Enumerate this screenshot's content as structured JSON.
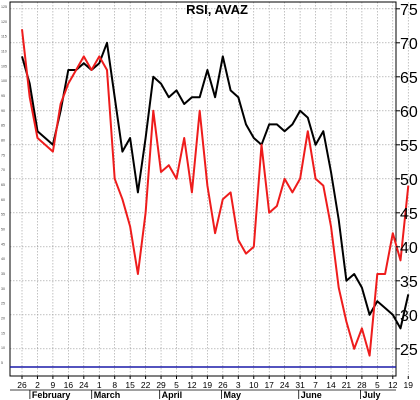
{
  "chart_data": {
    "type": "line",
    "title": "RSI, AVAZ",
    "xlabel": "",
    "ylabel": "",
    "ylim": [
      21,
      76
    ],
    "y_ticks": [
      25,
      30,
      35,
      40,
      45,
      50,
      55,
      60,
      65,
      70,
      75
    ],
    "grid": true,
    "legend": "none",
    "x_ticks": [
      "26",
      "2",
      "9",
      "16",
      "24",
      "1",
      "8",
      "15",
      "22",
      "29",
      "5",
      "12",
      "19",
      "26",
      "3",
      "10",
      "17",
      "24",
      "31",
      "7",
      "14",
      "21",
      "28",
      "5",
      "12",
      "19"
    ],
    "months": [
      "February",
      "March",
      "April",
      "May",
      "June",
      "July"
    ],
    "left_scale_labels": [
      "125",
      "120",
      "115",
      "110",
      "105",
      "100",
      "95",
      "90",
      "85",
      "80",
      "75",
      "70",
      "65",
      "60",
      "55",
      "50",
      "45",
      "40",
      "35",
      "30",
      "25",
      "20",
      "15",
      "10",
      "5"
    ],
    "colors": {
      "black_series": "#000000",
      "red_series": "#ee1c1c",
      "baseline": "#1a1aa8",
      "grid": "#9a9a9a"
    },
    "series": [
      {
        "color": "black",
        "x": [
          0,
          0.5,
          1,
          1.5,
          2,
          2.5,
          3,
          3.5,
          4,
          4.5,
          5,
          5.5,
          6,
          6.5,
          7,
          7.5,
          8,
          8.5,
          9,
          9.5,
          10,
          10.5,
          11,
          11.5,
          12,
          12.5,
          13,
          13.5,
          14,
          14.5,
          15,
          15.5,
          16,
          16.5,
          17,
          17.5,
          18,
          18.5,
          19,
          19.5,
          20,
          20.5,
          21,
          21.5,
          22,
          22.5,
          23,
          23.5,
          24,
          24.5,
          25
        ],
        "values": [
          68,
          64,
          57,
          56,
          55,
          60,
          66,
          66,
          67,
          66,
          67,
          70,
          62,
          54,
          56,
          48,
          56,
          65,
          64,
          62,
          63,
          61,
          62,
          62,
          66,
          62,
          68,
          63,
          62,
          58,
          56,
          55,
          58,
          58,
          57,
          58,
          60,
          59,
          55,
          57,
          51,
          44,
          35,
          36,
          34,
          30,
          32,
          31,
          30,
          28,
          33
        ]
      },
      {
        "color": "red",
        "x": [
          0,
          0.5,
          1,
          1.5,
          2,
          2.5,
          3,
          3.5,
          4,
          4.5,
          5,
          5.5,
          6,
          6.5,
          7,
          7.5,
          8,
          8.5,
          9,
          9.5,
          10,
          10.5,
          11,
          11.5,
          12,
          12.5,
          13,
          13.5,
          14,
          14.5,
          15,
          15.5,
          16,
          16.5,
          17,
          17.5,
          18,
          18.5,
          19,
          19.5,
          20,
          20.5,
          21,
          21.5,
          22,
          22.5,
          23,
          23.5,
          24,
          24.5,
          25
        ],
        "values": [
          72,
          62,
          56,
          55,
          54,
          61,
          64,
          66,
          68,
          66,
          68,
          66,
          50,
          47,
          43,
          36,
          45,
          60,
          51,
          52,
          50,
          56,
          48,
          60,
          49,
          42,
          47,
          48,
          41,
          39,
          40,
          55,
          45,
          46,
          50,
          48,
          50,
          57,
          50,
          49,
          43,
          34,
          29,
          25,
          28,
          24,
          36,
          36,
          42,
          38,
          49
        ]
      }
    ]
  }
}
